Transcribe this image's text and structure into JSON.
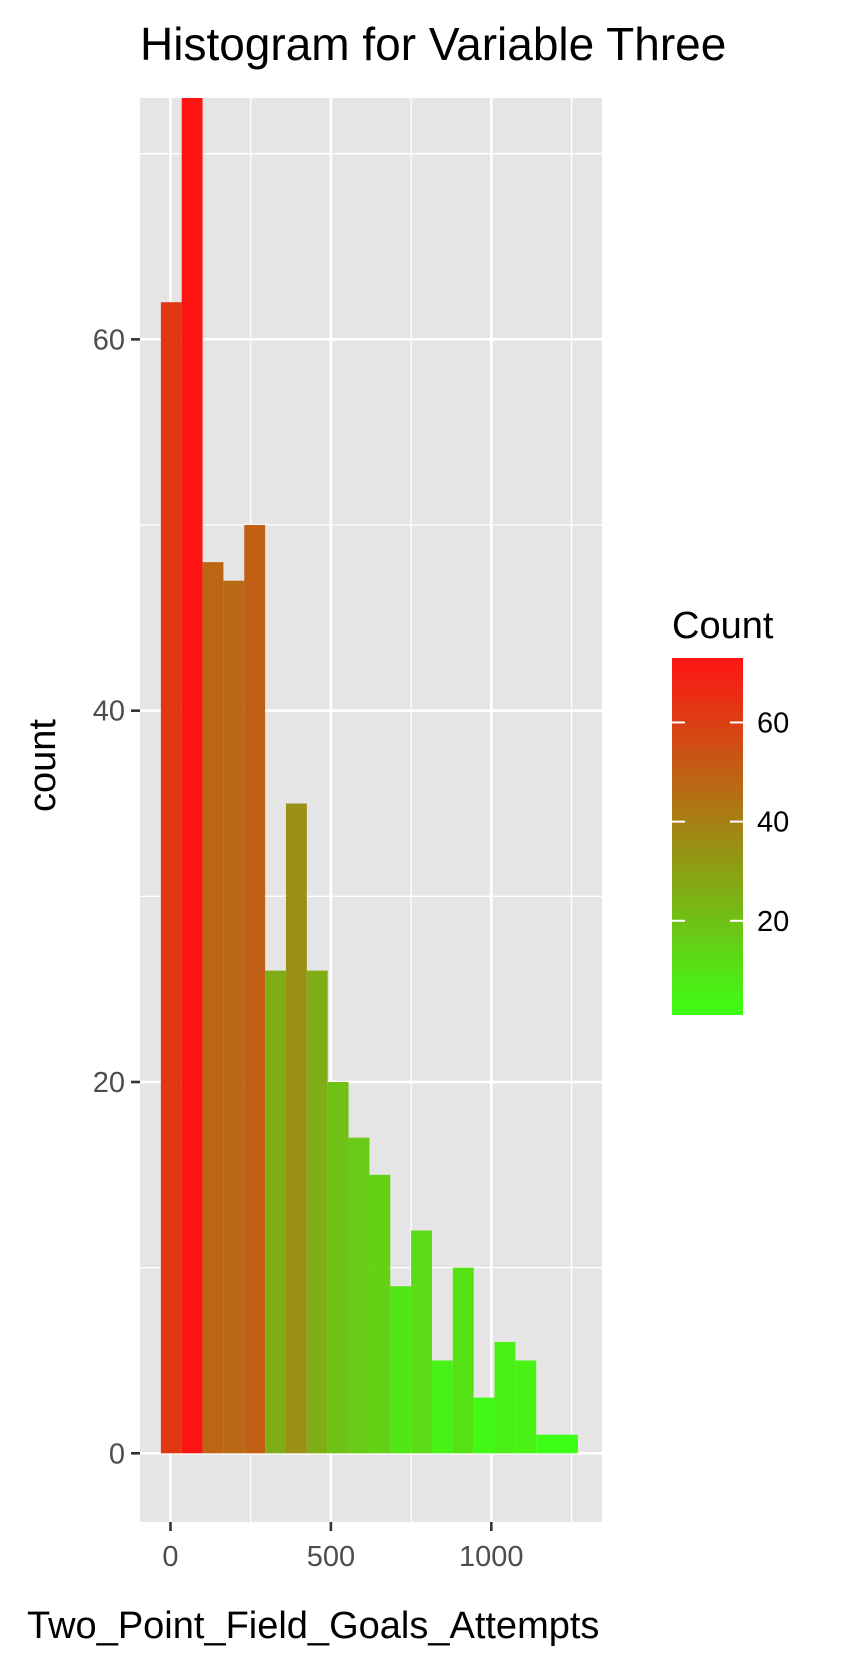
{
  "chart_data": {
    "type": "bar",
    "title": "Histogram for Variable Three",
    "xlabel": "Two_Point_Field_Goals_Attempts",
    "ylabel": "count",
    "xlim": [
      -95,
      1345
    ],
    "ylim": [
      -3.7,
      73
    ],
    "x_ticks": [
      0,
      500,
      1000
    ],
    "y_ticks": [
      0,
      20,
      40,
      60
    ],
    "bin_width": 65,
    "bins": [
      {
        "x0": -30,
        "x1": 35,
        "count": 62
      },
      {
        "x0": 35,
        "x1": 100,
        "count": 73
      },
      {
        "x0": 100,
        "x1": 165,
        "count": 48
      },
      {
        "x0": 165,
        "x1": 230,
        "count": 47
      },
      {
        "x0": 230,
        "x1": 295,
        "count": 50
      },
      {
        "x0": 295,
        "x1": 360,
        "count": 26
      },
      {
        "x0": 360,
        "x1": 425,
        "count": 35
      },
      {
        "x0": 425,
        "x1": 490,
        "count": 26
      },
      {
        "x0": 490,
        "x1": 555,
        "count": 20
      },
      {
        "x0": 555,
        "x1": 620,
        "count": 17
      },
      {
        "x0": 620,
        "x1": 685,
        "count": 15
      },
      {
        "x0": 685,
        "x1": 750,
        "count": 9
      },
      {
        "x0": 750,
        "x1": 815,
        "count": 12
      },
      {
        "x0": 815,
        "x1": 880,
        "count": 5
      },
      {
        "x0": 880,
        "x1": 945,
        "count": 10
      },
      {
        "x0": 945,
        "x1": 1010,
        "count": 3
      },
      {
        "x0": 1010,
        "x1": 1075,
        "count": 6
      },
      {
        "x0": 1075,
        "x1": 1140,
        "count": 5
      },
      {
        "x0": 1140,
        "x1": 1205,
        "count": 1
      },
      {
        "x0": 1205,
        "x1": 1270,
        "count": 1
      }
    ],
    "grid": true,
    "legend": {
      "title": "Count",
      "placement": "right",
      "range": [
        1,
        73
      ],
      "ticks": [
        20,
        40,
        60
      ],
      "low_color": "#3dff15",
      "high_color": "#ff1414"
    },
    "colors": {
      "panel_background": "#e5e5e5",
      "grid": "#ffffff",
      "tick_label": "#4d4d4d",
      "tick_mark": "#333333"
    }
  }
}
